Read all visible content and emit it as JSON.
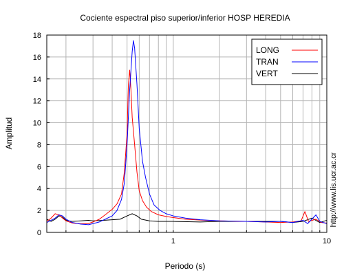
{
  "chart_data": {
    "type": "line",
    "title": "Cociente espectral piso superior/inferior  HOSP HEREDIA",
    "xlabel": "Periodo (s)",
    "ylabel": "Amplitud",
    "xscale": "log",
    "xlim": [
      0.15,
      10
    ],
    "ylim": [
      0,
      18
    ],
    "x_tick_labels": [
      {
        "value": 1,
        "label": "1"
      },
      {
        "value": 10,
        "label": "10"
      }
    ],
    "y_ticks": [
      0,
      2,
      4,
      6,
      8,
      10,
      12,
      14,
      16,
      18
    ],
    "grid": true,
    "legend_position": "top-right",
    "side_annotation": "http://www.lis.ucr.ac.cr",
    "series": [
      {
        "name": "LONG",
        "color": "#ff0000",
        "points": [
          [
            0.15,
            1.0
          ],
          [
            0.16,
            1.3
          ],
          [
            0.17,
            1.7
          ],
          [
            0.18,
            1.6
          ],
          [
            0.19,
            1.3
          ],
          [
            0.2,
            1.05
          ],
          [
            0.22,
            0.85
          ],
          [
            0.25,
            0.78
          ],
          [
            0.28,
            0.8
          ],
          [
            0.3,
            0.95
          ],
          [
            0.33,
            1.2
          ],
          [
            0.36,
            1.6
          ],
          [
            0.4,
            2.1
          ],
          [
            0.43,
            2.6
          ],
          [
            0.46,
            3.5
          ],
          [
            0.48,
            5.5
          ],
          [
            0.5,
            9.0
          ],
          [
            0.51,
            13.5
          ],
          [
            0.52,
            14.8
          ],
          [
            0.53,
            13.0
          ],
          [
            0.54,
            10.5
          ],
          [
            0.56,
            8.0
          ],
          [
            0.58,
            5.5
          ],
          [
            0.6,
            3.8
          ],
          [
            0.63,
            2.9
          ],
          [
            0.67,
            2.3
          ],
          [
            0.72,
            1.9
          ],
          [
            0.8,
            1.6
          ],
          [
            0.9,
            1.45
          ],
          [
            1.0,
            1.35
          ],
          [
            1.2,
            1.2
          ],
          [
            1.5,
            1.12
          ],
          [
            2.0,
            1.05
          ],
          [
            3.0,
            1.0
          ],
          [
            4.0,
            0.95
          ],
          [
            5.0,
            0.9
          ],
          [
            6.0,
            0.95
          ],
          [
            6.8,
            1.05
          ],
          [
            7.2,
            1.9
          ],
          [
            7.6,
            1.0
          ],
          [
            8.5,
            1.2
          ],
          [
            9.2,
            0.9
          ],
          [
            10.0,
            0.85
          ]
        ]
      },
      {
        "name": "TRAN",
        "color": "#0000ff",
        "points": [
          [
            0.15,
            0.9
          ],
          [
            0.16,
            1.1
          ],
          [
            0.17,
            1.3
          ],
          [
            0.18,
            1.6
          ],
          [
            0.19,
            1.5
          ],
          [
            0.2,
            1.2
          ],
          [
            0.22,
            0.9
          ],
          [
            0.25,
            0.75
          ],
          [
            0.28,
            0.7
          ],
          [
            0.3,
            0.8
          ],
          [
            0.33,
            0.95
          ],
          [
            0.36,
            1.2
          ],
          [
            0.4,
            1.5
          ],
          [
            0.43,
            2.0
          ],
          [
            0.46,
            3.0
          ],
          [
            0.48,
            4.5
          ],
          [
            0.5,
            8.0
          ],
          [
            0.52,
            13.0
          ],
          [
            0.54,
            16.5
          ],
          [
            0.55,
            17.5
          ],
          [
            0.56,
            16.8
          ],
          [
            0.58,
            13.5
          ],
          [
            0.6,
            9.5
          ],
          [
            0.63,
            6.5
          ],
          [
            0.66,
            5.0
          ],
          [
            0.7,
            3.5
          ],
          [
            0.75,
            2.5
          ],
          [
            0.82,
            2.0
          ],
          [
            0.9,
            1.7
          ],
          [
            1.0,
            1.5
          ],
          [
            1.2,
            1.3
          ],
          [
            1.5,
            1.15
          ],
          [
            2.0,
            1.05
          ],
          [
            3.0,
            1.0
          ],
          [
            4.0,
            0.95
          ],
          [
            5.0,
            1.0
          ],
          [
            6.0,
            0.9
          ],
          [
            7.0,
            1.1
          ],
          [
            7.5,
            0.8
          ],
          [
            8.5,
            1.6
          ],
          [
            9.0,
            1.0
          ],
          [
            10.0,
            0.8
          ]
        ]
      },
      {
        "name": "VERT",
        "color": "#000000",
        "points": [
          [
            0.15,
            1.2
          ],
          [
            0.16,
            1.0
          ],
          [
            0.17,
            1.2
          ],
          [
            0.18,
            1.5
          ],
          [
            0.19,
            1.4
          ],
          [
            0.2,
            1.1
          ],
          [
            0.22,
            1.0
          ],
          [
            0.25,
            1.05
          ],
          [
            0.28,
            1.1
          ],
          [
            0.3,
            1.05
          ],
          [
            0.35,
            1.1
          ],
          [
            0.4,
            1.15
          ],
          [
            0.45,
            1.2
          ],
          [
            0.5,
            1.5
          ],
          [
            0.54,
            1.7
          ],
          [
            0.58,
            1.5
          ],
          [
            0.62,
            1.2
          ],
          [
            0.7,
            1.05
          ],
          [
            0.8,
            1.0
          ],
          [
            1.0,
            1.0
          ],
          [
            1.5,
            0.95
          ],
          [
            2.0,
            1.0
          ],
          [
            3.0,
            1.0
          ],
          [
            4.0,
            1.0
          ],
          [
            5.0,
            1.0
          ],
          [
            6.0,
            0.9
          ],
          [
            7.0,
            1.0
          ],
          [
            8.0,
            1.3
          ],
          [
            9.0,
            0.9
          ],
          [
            10.0,
            1.1
          ]
        ]
      }
    ]
  }
}
